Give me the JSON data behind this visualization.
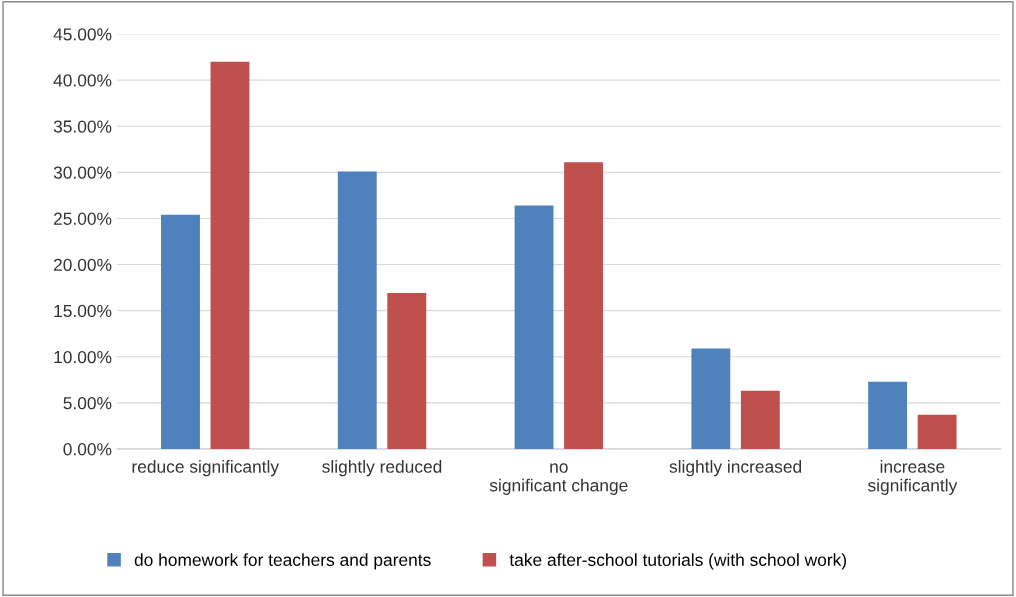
{
  "chart_data": {
    "type": "bar",
    "categories": [
      "reduce significantly",
      "slightly reduced",
      "no significant change",
      "slightly increased",
      "increase significantly"
    ],
    "series": [
      {
        "name": "do homework for teachers and parents",
        "color": "#4f81bd",
        "values": [
          25.4,
          30.1,
          26.4,
          10.9,
          7.3
        ]
      },
      {
        "name": "take after-school tutorials (with school work)",
        "color": "#c0504d",
        "values": [
          42.0,
          16.9,
          31.1,
          6.3,
          3.7
        ]
      }
    ],
    "ylim": [
      0,
      45
    ],
    "yticks": [
      {
        "value": 0,
        "label": "0.00%"
      },
      {
        "value": 5,
        "label": "5.00%"
      },
      {
        "value": 10,
        "label": "10.00%"
      },
      {
        "value": 15,
        "label": "15.00%"
      },
      {
        "value": 20,
        "label": "20.00%"
      },
      {
        "value": 25,
        "label": "25.00%"
      },
      {
        "value": 30,
        "label": "30.00%"
      },
      {
        "value": 35,
        "label": "35.00%"
      },
      {
        "value": 40,
        "label": "40.00%"
      },
      {
        "value": 45,
        "label": "45.00%"
      }
    ],
    "grid": "y",
    "legend": "bottom"
  }
}
